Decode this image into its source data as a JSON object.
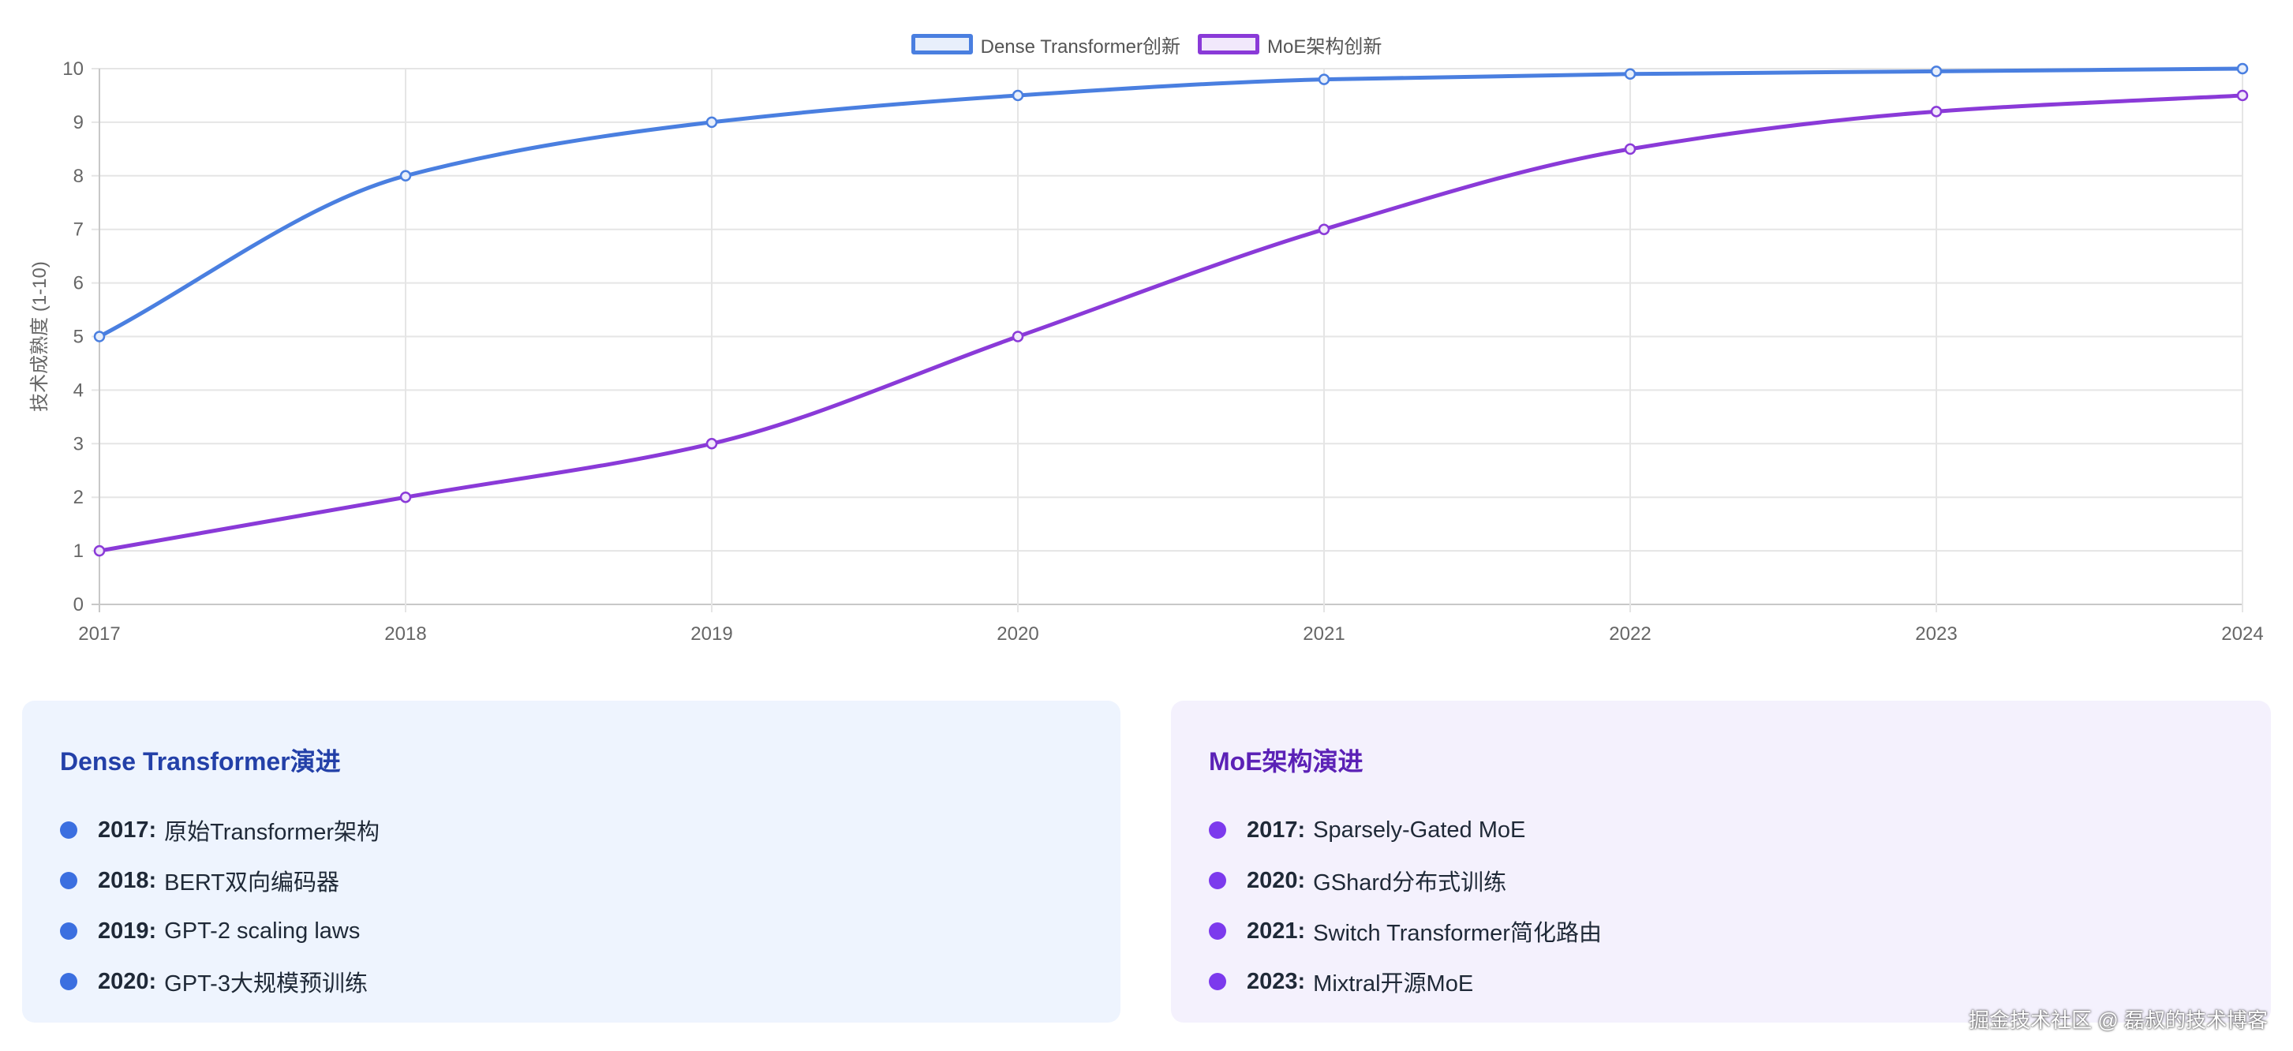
{
  "chart_data": {
    "type": "line",
    "x": [
      "2017",
      "2018",
      "2019",
      "2020",
      "2021",
      "2022",
      "2023",
      "2024"
    ],
    "series": [
      {
        "name": "Dense Transformer创新",
        "color": "#4a7fe0",
        "fill": "#e8effb",
        "values": [
          5,
          8,
          9,
          9.5,
          9.8,
          9.9,
          9.95,
          10
        ]
      },
      {
        "name": "MoE架构创新",
        "color": "#8a3ad8",
        "fill": "#f1e8fb",
        "values": [
          1,
          2,
          3,
          5,
          7,
          8.5,
          9.2,
          9.5
        ]
      }
    ],
    "ylabel": "技术成熟度 (1-10)",
    "ylim": [
      0,
      10
    ],
    "yticks": [
      0,
      1,
      2,
      3,
      4,
      5,
      6,
      7,
      8,
      9,
      10
    ],
    "grid": true,
    "legend": "top-center"
  },
  "panels": {
    "dense": {
      "title": "Dense Transformer演进",
      "items": [
        {
          "year": "2017:",
          "text": "原始Transformer架构"
        },
        {
          "year": "2018:",
          "text": "BERT双向编码器"
        },
        {
          "year": "2019:",
          "text": "GPT-2 scaling laws"
        },
        {
          "year": "2020:",
          "text": "GPT-3大规模预训练"
        }
      ]
    },
    "moe": {
      "title": "MoE架构演进",
      "items": [
        {
          "year": "2017:",
          "text": "Sparsely-Gated MoE"
        },
        {
          "year": "2020:",
          "text": "GShard分布式训练"
        },
        {
          "year": "2021:",
          "text": "Switch Transformer简化路由"
        },
        {
          "year": "2023:",
          "text": "Mixtral开源MoE"
        }
      ]
    }
  },
  "watermark": "掘金技术社区 @ 磊叔的技术博客"
}
